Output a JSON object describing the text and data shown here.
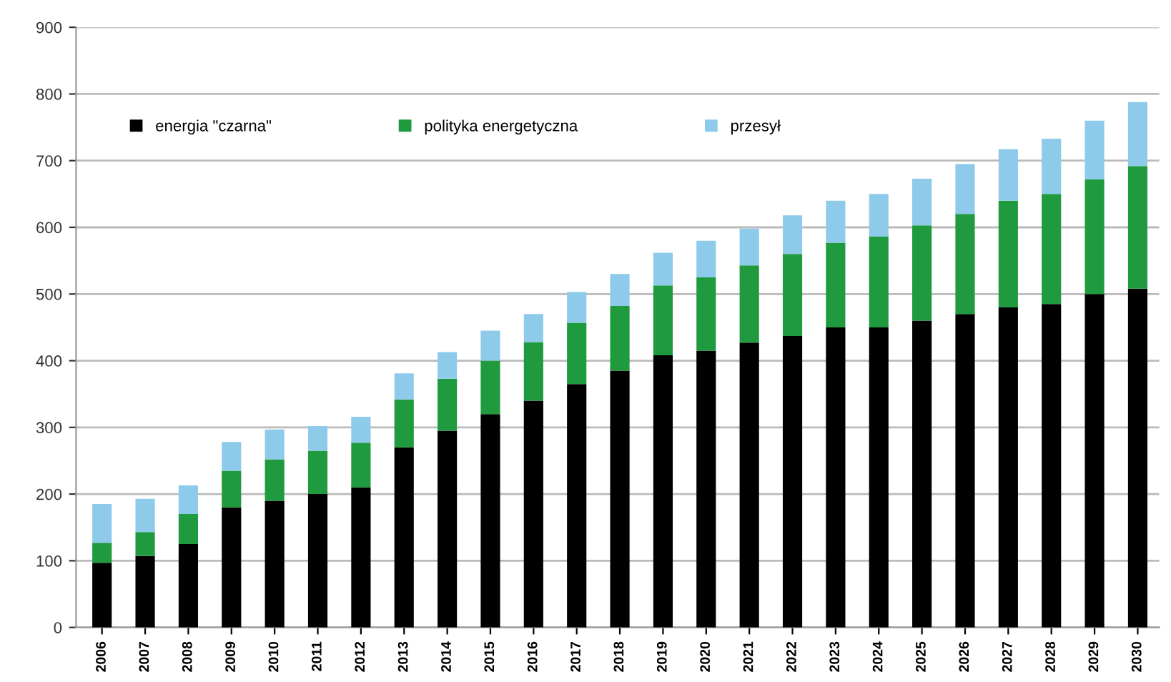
{
  "chart_data": {
    "type": "bar",
    "stacked": true,
    "categories": [
      "2006",
      "2007",
      "2008",
      "2009",
      "2010",
      "2011",
      "2012",
      "2013",
      "2014",
      "2015",
      "2016",
      "2017",
      "2018",
      "2019",
      "2020",
      "2021",
      "2022",
      "2023",
      "2024",
      "2025",
      "2026",
      "2027",
      "2028",
      "2029",
      "2030"
    ],
    "series": [
      {
        "name": "energia \"czarna\"",
        "color": "#000000",
        "values": [
          97,
          107,
          125,
          180,
          190,
          200,
          210,
          270,
          295,
          320,
          340,
          365,
          385,
          408,
          415,
          427,
          437,
          450,
          450,
          460,
          470,
          480,
          485,
          500,
          508
        ]
      },
      {
        "name": "polityka energetyczna",
        "color": "#1f9a3e",
        "values": [
          30,
          36,
          45,
          55,
          62,
          65,
          67,
          72,
          78,
          80,
          88,
          92,
          97,
          105,
          110,
          116,
          123,
          127,
          136,
          143,
          150,
          160,
          165,
          172,
          184
        ]
      },
      {
        "name": "przesył",
        "color": "#8ecbea",
        "values": [
          58,
          50,
          43,
          43,
          45,
          37,
          39,
          39,
          40,
          45,
          42,
          46,
          48,
          49,
          55,
          55,
          58,
          63,
          64,
          70,
          75,
          77,
          83,
          88,
          96
        ]
      }
    ],
    "ylim": [
      0,
      900
    ],
    "yticks": [
      0,
      100,
      200,
      300,
      400,
      500,
      600,
      700,
      800,
      900
    ],
    "grid": "y",
    "legend": "top"
  }
}
